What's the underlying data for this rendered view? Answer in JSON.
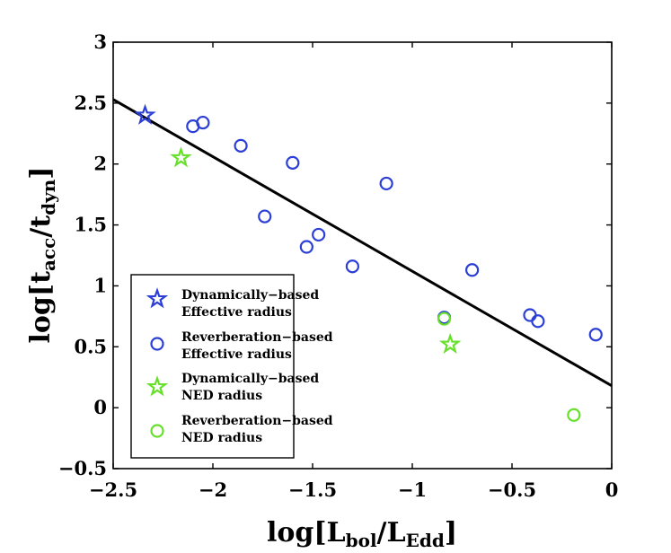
{
  "chart_data": {
    "type": "scatter",
    "xlabel": "log[L_bol/L_Edd]",
    "xlabel_parts": {
      "prefix": "log[L",
      "sub1": "bol",
      "mid": "/L",
      "sub2": "Edd",
      "suffix": "]"
    },
    "ylabel": "log[t_acc/t_dyn]",
    "ylabel_parts": {
      "prefix": "log[t",
      "sub1": "acc",
      "mid": "/t",
      "sub2": "dyn",
      "suffix": "]"
    },
    "xlim": [
      -2.5,
      0
    ],
    "ylim": [
      -0.5,
      3
    ],
    "xticks": [
      -2.5,
      -2,
      -1.5,
      -1,
      -0.5,
      0
    ],
    "xtick_labels": [
      "−2.5",
      "−2",
      "−1.5",
      "−1",
      "−0.5",
      "0"
    ],
    "yticks": [
      -0.5,
      0,
      0.5,
      1,
      1.5,
      2,
      2.5,
      3
    ],
    "ytick_labels": [
      "−0.5",
      "0",
      "0.5",
      "1",
      "1.5",
      "2",
      "2.5",
      "3"
    ],
    "fit_line": {
      "x": [
        -2.5,
        0
      ],
      "y": [
        2.53,
        0.18
      ],
      "color": "#000000"
    },
    "series": [
      {
        "name": "Dynamically−based Effective radius",
        "legend_lines": [
          "Dynamically−based",
          "Effective radius"
        ],
        "marker": "star",
        "color": "#2b3fd6",
        "points": [
          [
            -2.34,
            2.4
          ]
        ]
      },
      {
        "name": "Reverberation−based Effective radius",
        "legend_lines": [
          "Reverberation−based",
          "Effective radius"
        ],
        "marker": "circle",
        "color": "#2b3fd6",
        "points": [
          [
            -2.1,
            2.31
          ],
          [
            -2.05,
            2.34
          ],
          [
            -1.86,
            2.15
          ],
          [
            -1.6,
            2.01
          ],
          [
            -1.74,
            1.57
          ],
          [
            -1.53,
            1.32
          ],
          [
            -1.47,
            1.42
          ],
          [
            -1.3,
            1.16
          ],
          [
            -1.13,
            1.84
          ],
          [
            -0.84,
            0.74
          ],
          [
            -0.7,
            1.13
          ],
          [
            -0.41,
            0.76
          ],
          [
            -0.37,
            0.71
          ],
          [
            -0.08,
            0.6
          ]
        ]
      },
      {
        "name": "Dynamically−based NED radius",
        "legend_lines": [
          "Dynamically−based",
          "NED radius"
        ],
        "marker": "star",
        "color": "#66e02a",
        "points": [
          [
            -2.16,
            2.05
          ],
          [
            -0.81,
            0.52
          ]
        ]
      },
      {
        "name": "Reverberation−based NED radius",
        "legend_lines": [
          "Reverberation−based",
          "NED radius"
        ],
        "marker": "circle",
        "color": "#66e02a",
        "points": [
          [
            -0.84,
            0.73
          ],
          [
            -0.19,
            -0.06
          ]
        ]
      }
    ]
  }
}
